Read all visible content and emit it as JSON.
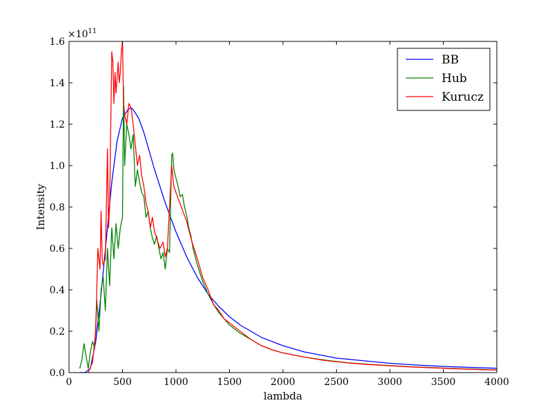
{
  "chart_data": {
    "type": "line",
    "xlabel": "lambda",
    "ylabel": "Intensity",
    "xlim": [
      0,
      4000
    ],
    "ylim": [
      0,
      1.6
    ],
    "y_multiplier": {
      "base": "×10",
      "exponent": "11"
    },
    "x_ticks": [
      "0",
      "500",
      "1000",
      "1500",
      "2000",
      "2500",
      "3000",
      "3500",
      "4000"
    ],
    "y_ticks": [
      "0.0",
      "0.2",
      "0.4",
      "0.6",
      "0.8",
      "1.0",
      "1.2",
      "1.4",
      "1.6"
    ],
    "x_tick_values": [
      0,
      500,
      1000,
      1500,
      2000,
      2500,
      3000,
      3500,
      4000
    ],
    "y_tick_values": [
      0,
      0.2,
      0.4,
      0.6,
      0.8,
      1.0,
      1.2,
      1.4,
      1.6
    ],
    "legend_position": "top-right",
    "grid": false,
    "series": [
      {
        "name": "BB",
        "color": "#0000ff",
        "x": [
          100,
          150,
          200,
          250,
          300,
          350,
          400,
          450,
          500,
          550,
          580,
          600,
          650,
          700,
          750,
          800,
          900,
          1000,
          1100,
          1200,
          1300,
          1400,
          1500,
          1600,
          1800,
          2000,
          2200,
          2500,
          2800,
          3000,
          3200,
          3500,
          3800,
          4000
        ],
        "y": [
          0.0,
          0.0,
          0.02,
          0.15,
          0.38,
          0.65,
          0.92,
          1.12,
          1.23,
          1.27,
          1.28,
          1.27,
          1.23,
          1.16,
          1.07,
          0.98,
          0.82,
          0.68,
          0.56,
          0.46,
          0.38,
          0.32,
          0.27,
          0.23,
          0.17,
          0.13,
          0.1,
          0.07,
          0.055,
          0.045,
          0.038,
          0.03,
          0.024,
          0.021
        ]
      },
      {
        "name": "Hub",
        "color": "#008000",
        "x": [
          100,
          120,
          140,
          160,
          180,
          200,
          220,
          240,
          260,
          280,
          300,
          320,
          340,
          360,
          380,
          400,
          420,
          440,
          460,
          480,
          500,
          510,
          520,
          540,
          560,
          580,
          600,
          620,
          640,
          660,
          680,
          700,
          720,
          740,
          760,
          780,
          800,
          820,
          840,
          860,
          880,
          900,
          920,
          940,
          960,
          970,
          980,
          1000,
          1020,
          1040,
          1060,
          1080,
          1100,
          1120,
          1140,
          1160,
          1180,
          1200,
          1250,
          1300,
          1350,
          1400,
          1450,
          1500,
          1550,
          1600,
          1700,
          1800,
          1900,
          2000,
          2100,
          2200,
          2400,
          2600,
          2800,
          3000,
          3200,
          3400,
          3600,
          3800,
          4000
        ],
        "y": [
          0.02,
          0.06,
          0.14,
          0.08,
          0.02,
          0.1,
          0.15,
          0.12,
          0.35,
          0.2,
          0.4,
          0.46,
          0.3,
          0.6,
          0.42,
          0.7,
          0.55,
          0.72,
          0.6,
          0.7,
          0.75,
          1.38,
          1.0,
          1.2,
          1.15,
          1.08,
          1.15,
          0.9,
          0.98,
          0.92,
          0.87,
          0.85,
          0.75,
          0.78,
          0.7,
          0.65,
          0.62,
          0.66,
          0.6,
          0.55,
          0.58,
          0.5,
          0.6,
          0.58,
          1.05,
          1.06,
          0.98,
          0.94,
          0.9,
          0.85,
          0.86,
          0.8,
          0.76,
          0.7,
          0.66,
          0.6,
          0.56,
          0.52,
          0.44,
          0.38,
          0.33,
          0.29,
          0.26,
          0.23,
          0.21,
          0.19,
          0.16,
          0.13,
          0.11,
          0.095,
          0.085,
          0.075,
          0.06,
          0.048,
          0.04,
          0.034,
          0.028,
          0.024,
          0.02,
          0.016,
          0.013
        ]
      },
      {
        "name": "Kurucz",
        "color": "#ff0000",
        "x": [
          180,
          220,
          250,
          270,
          290,
          300,
          310,
          320,
          340,
          360,
          370,
          380,
          400,
          410,
          420,
          430,
          440,
          460,
          470,
          480,
          490,
          500,
          510,
          520,
          540,
          560,
          580,
          600,
          620,
          640,
          660,
          680,
          700,
          720,
          740,
          760,
          780,
          800,
          820,
          850,
          880,
          900,
          920,
          940,
          960,
          980,
          1000,
          1050,
          1100,
          1150,
          1200,
          1250,
          1300,
          1350,
          1400,
          1450,
          1500,
          1550,
          1600,
          1700,
          1800,
          1900,
          2000,
          2100,
          2200,
          2400,
          2600,
          2800,
          3000,
          3200,
          3400,
          3600,
          3800,
          4000
        ],
        "y": [
          0.0,
          0.05,
          0.2,
          0.6,
          0.5,
          0.78,
          0.55,
          0.52,
          0.55,
          1.08,
          0.7,
          0.8,
          1.55,
          1.5,
          1.3,
          1.45,
          1.35,
          1.5,
          1.4,
          1.45,
          1.55,
          1.6,
          1.3,
          1.25,
          1.2,
          1.3,
          1.28,
          1.2,
          1.1,
          1.0,
          1.05,
          0.95,
          0.9,
          0.82,
          0.78,
          0.7,
          0.75,
          0.68,
          0.65,
          0.6,
          0.63,
          0.56,
          0.6,
          0.8,
          1.0,
          0.9,
          0.87,
          0.8,
          0.73,
          0.63,
          0.55,
          0.46,
          0.4,
          0.33,
          0.3,
          0.26,
          0.24,
          0.22,
          0.2,
          0.16,
          0.13,
          0.11,
          0.095,
          0.085,
          0.075,
          0.058,
          0.047,
          0.039,
          0.033,
          0.027,
          0.023,
          0.019,
          0.015,
          0.012
        ]
      }
    ]
  }
}
